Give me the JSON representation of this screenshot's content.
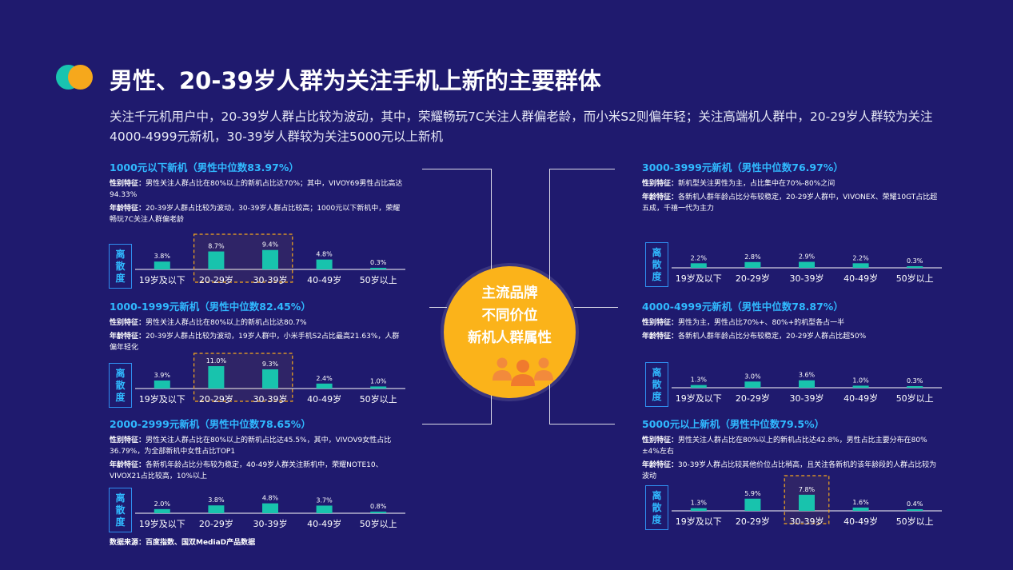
{
  "header": {
    "title": "男性、20-39岁人群为关注手机上新的主要群体",
    "subtitle": "关注千元机用户中，20-39岁人群占比较为波动，其中，荣耀畅玩7C关注人群偏老龄，而小米S2则偏年轻；关注高端机人群中，20-29岁人群较为关注4000-4999元新机，30-39岁人群较为关注5000元以上新机"
  },
  "hub": {
    "line1": "主流品牌",
    "line2": "不同价位",
    "line3": "新机人群属性",
    "icon": "people-group-icon"
  },
  "colors": {
    "background": "#1f1a6e",
    "bar": "#18c3ad",
    "accent": "#30b9ff",
    "hub": "#fbb31a",
    "highlight": "#f6a81c"
  },
  "dispersion_label": [
    "离",
    "散",
    "度"
  ],
  "source": "数据来源：百度指数、国双MediaD产品数据",
  "panels": [
    {
      "title": "1000元以下新机（男性中位数83.97%）",
      "gender_key": "性别特征：",
      "gender_text": "男性关注人群占比在80%以上的新机占比达70%；其中，VIVOY69男性占比高达94.33%",
      "age_key": "年龄特征：",
      "age_text": "20-39岁人群占比较为波动，30-39岁人群占比较高；1000元以下新机中，荣耀畅玩7C关注人群偏老龄"
    },
    {
      "title": "1000-1999元新机（男性中位数82.45%）",
      "gender_key": "性别特征：",
      "gender_text": "男性关注人群占比在80%以上的新机占比达80.7%",
      "age_key": "年龄特征：",
      "age_text": "20-39岁人群占比较为波动，19岁人群中，小米手机S2占比最高21.63%，人群偏年轻化"
    },
    {
      "title": "2000-2999元新机（男性中位数78.65%）",
      "gender_key": "性别特征：",
      "gender_text": "男性关注人群占比在80%以上的新机占比达45.5%，其中，VIVOV9女性占比36.79%，为全部新机中女性占比TOP1",
      "age_key": "年龄特征：",
      "age_text": "各新机年龄占比分布较为稳定，40-49岁人群关注新机中，荣耀NOTE10、VIVOX21占比较高，10%以上"
    },
    {
      "title": "3000-3999元新机（男性中位数76.97%）",
      "gender_key": "性别特征：",
      "gender_text": "新机型关注男性为主，占比集中在70%-80%之间",
      "age_key": "年龄特征：",
      "age_text": "各新机人群年龄占比分布较稳定，20-29岁人群中，VIVONEX、荣耀10GT占比超五成，千禧一代为主力"
    },
    {
      "title": "4000-4999元新机（男性中位数78.87%）",
      "gender_key": "性别特征：",
      "gender_text": "男性为主，男性占比70%+、80%+的机型各占一半",
      "age_key": "年龄特征：",
      "age_text": "各新机人群年龄占比分布较稳定，20-29岁人群占比超50%"
    },
    {
      "title": "5000元以上新机（男性中位数79.5%）",
      "gender_key": "性别特征：",
      "gender_text": "男性关注人群占比在80%以上的新机占比达42.8%，男性占比主要分布在80%±4%左右",
      "age_key": "年龄特征：",
      "age_text": "30-39岁人群占比较其他价位占比稍高，且关注各新机的该年龄段的人群占比较为波动"
    }
  ],
  "chart_data": [
    {
      "type": "bar",
      "ylabel": "离散度",
      "categories": [
        "19岁及以下",
        "20-29岁",
        "30-39岁",
        "40-49岁",
        "50岁以上"
      ],
      "values": [
        3.8,
        8.7,
        9.4,
        4.8,
        0.3
      ],
      "labels": [
        "3.8%",
        "8.7%",
        "9.4%",
        "4.8%",
        "0.3%"
      ],
      "highlight": [
        1,
        2
      ]
    },
    {
      "type": "bar",
      "ylabel": "离散度",
      "categories": [
        "19岁及以下",
        "20-29岁",
        "30-39岁",
        "40-49岁",
        "50岁以上"
      ],
      "values": [
        3.9,
        11.0,
        9.3,
        2.4,
        1.0
      ],
      "labels": [
        "3.9%",
        "11.0%",
        "9.3%",
        "2.4%",
        "1.0%"
      ],
      "highlight": [
        1,
        2
      ]
    },
    {
      "type": "bar",
      "ylabel": "离散度",
      "categories": [
        "19岁及以下",
        "20-29岁",
        "30-39岁",
        "40-49岁",
        "50岁以上"
      ],
      "values": [
        2.0,
        3.8,
        4.8,
        3.7,
        0.8
      ],
      "labels": [
        "2.0%",
        "3.8%",
        "4.8%",
        "3.7%",
        "0.8%"
      ],
      "highlight": []
    },
    {
      "type": "bar",
      "ylabel": "离散度",
      "categories": [
        "19岁及以下",
        "20-29岁",
        "30-39岁",
        "40-49岁",
        "50岁以上"
      ],
      "values": [
        2.2,
        2.8,
        2.9,
        2.2,
        0.3
      ],
      "labels": [
        "2.2%",
        "2.8%",
        "2.9%",
        "2.2%",
        "0.3%"
      ],
      "highlight": []
    },
    {
      "type": "bar",
      "ylabel": "离散度",
      "categories": [
        "19岁及以下",
        "20-29岁",
        "30-39岁",
        "40-49岁",
        "50岁以上"
      ],
      "values": [
        1.3,
        3.0,
        3.6,
        1.0,
        0.3
      ],
      "labels": [
        "1.3%",
        "3.0%",
        "3.6%",
        "1.0%",
        "0.3%"
      ],
      "highlight": []
    },
    {
      "type": "bar",
      "ylabel": "离散度",
      "categories": [
        "19岁及以下",
        "20-29岁",
        "30-39岁",
        "40-49岁",
        "50岁以上"
      ],
      "values": [
        1.3,
        5.9,
        7.8,
        1.6,
        0.4
      ],
      "labels": [
        "1.3%",
        "5.9%",
        "7.8%",
        "1.6%",
        "0.4%"
      ],
      "highlight": [
        2
      ]
    }
  ]
}
